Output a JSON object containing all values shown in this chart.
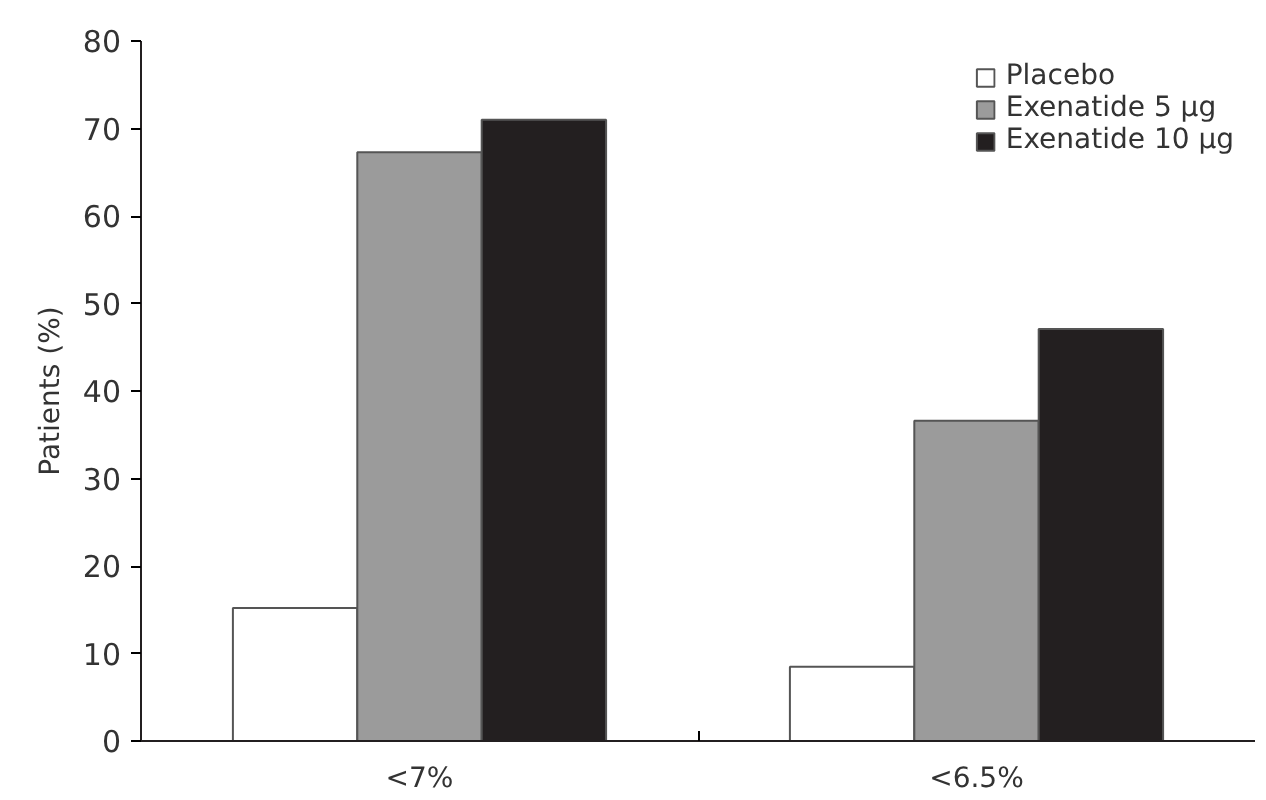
{
  "chart_data": {
    "type": "bar",
    "ylabel": "Patients (%)",
    "categories": [
      "<7%",
      "<6.5%"
    ],
    "series": [
      {
        "name": "Placebo",
        "color": "#ffffff",
        "values": [
          15.2,
          8.5
        ]
      },
      {
        "name": "Exenatide 5 μg",
        "color": "#9b9b9b",
        "values": [
          67.3,
          36.6
        ]
      },
      {
        "name": "Exenatide 10 μg",
        "color": "#231f20",
        "values": [
          71,
          47.1
        ]
      }
    ],
    "ylim": [
      0,
      80
    ],
    "yticks": [
      0,
      10,
      20,
      30,
      40,
      50,
      60,
      70,
      80
    ],
    "grid": false,
    "legend": "top right"
  }
}
